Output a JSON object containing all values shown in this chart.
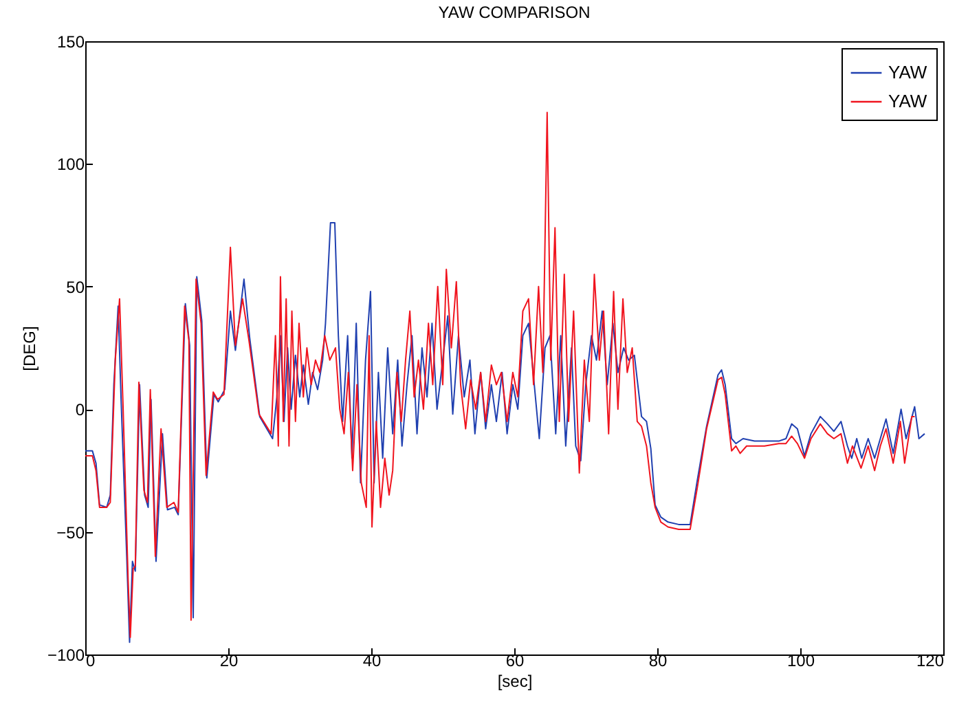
{
  "chart_data": {
    "type": "line",
    "title": "YAW COMPARISON",
    "xlabel": "[sec]",
    "ylabel": "[DEG]",
    "xlim": [
      0,
      120
    ],
    "ylim": [
      -100,
      150
    ],
    "xticks": [
      0,
      20,
      40,
      60,
      80,
      100,
      120
    ],
    "yticks": [
      -100,
      -50,
      0,
      50,
      100,
      150
    ],
    "grid": false,
    "legend": "top right",
    "series": [
      {
        "name": "YAW",
        "color": "#2040b0",
        "x": [
          0,
          1,
          1.5,
          2,
          3,
          3.5,
          4,
          4.6,
          5,
          5.8,
          6.2,
          6.6,
          7,
          7.6,
          8.3,
          8.8,
          9.2,
          9.9,
          10.8,
          11.5,
          12.5,
          13,
          14,
          14.6,
          15.1,
          15.6,
          16.3,
          17,
          18,
          18.6,
          19.5,
          20.3,
          21,
          22.2,
          23,
          24.4,
          26.2,
          26.8,
          27.3,
          27.8,
          28.3,
          28.8,
          29.4,
          30,
          30.5,
          31.2,
          31.8,
          32.5,
          33.2,
          33.6,
          34.3,
          34.9,
          35.4,
          36,
          36.7,
          37.3,
          37.9,
          38.5,
          39.2,
          39.9,
          40.4,
          41,
          41.6,
          42.3,
          43,
          43.7,
          44.3,
          45,
          45.7,
          46.4,
          47.1,
          47.8,
          48.5,
          49.2,
          50,
          50.7,
          51.4,
          52.2,
          53,
          53.8,
          54.5,
          55.3,
          56,
          56.8,
          57.5,
          58.3,
          59,
          59.8,
          60.5,
          61.2,
          62,
          62.8,
          63.5,
          64.3,
          65,
          65.8,
          66.5,
          67.2,
          68,
          68.6,
          69.3,
          70,
          70.8,
          71.5,
          72.3,
          73,
          73.8,
          74.5,
          75.3,
          76,
          76.8,
          77.8,
          78.5,
          79.1,
          79.7,
          80.5,
          81.5,
          83,
          84.6,
          85.6,
          86.9,
          88.5,
          89,
          89.5,
          90.4,
          91,
          92,
          93.6,
          95,
          97,
          98,
          98.8,
          99.6,
          100.6,
          101.5,
          102.8,
          103.8,
          104.7,
          105.7,
          106.6,
          107.2,
          107.9,
          108.6,
          109.5,
          110.4,
          111.2,
          112,
          113,
          114.1,
          114.8,
          116,
          116.6,
          117.4
        ],
        "values": [
          -17,
          -17,
          -22,
          -39,
          -40,
          -35,
          10,
          42,
          5,
          -60,
          -95,
          -62,
          -66,
          10,
          -35,
          -40,
          4,
          -62,
          -10,
          -41,
          -40,
          -43,
          43,
          26,
          -85,
          54,
          36,
          -28,
          6,
          3,
          8,
          40,
          24,
          53,
          29,
          -3,
          -12,
          5,
          30,
          -5,
          25,
          0,
          22,
          5,
          18,
          2,
          15,
          8,
          20,
          35,
          76,
          76,
          30,
          -5,
          30,
          -20,
          35,
          -30,
          20,
          48,
          -30,
          15,
          -20,
          25,
          -10,
          20,
          -15,
          10,
          30,
          -10,
          25,
          5,
          35,
          0,
          20,
          38,
          -2,
          30,
          5,
          20,
          -10,
          15,
          -8,
          10,
          -5,
          15,
          -10,
          10,
          0,
          30,
          35,
          10,
          -12,
          25,
          30,
          -10,
          30,
          -15,
          25,
          -15,
          -21,
          10,
          30,
          20,
          40,
          10,
          35,
          15,
          25,
          20,
          22,
          -3,
          -5,
          -16,
          -39,
          -44,
          -46,
          -47,
          -47,
          -29,
          -7,
          14,
          16,
          10,
          -12,
          -14,
          -12,
          -13,
          -13,
          -13,
          -12,
          -6,
          -8,
          -19,
          -10,
          -3,
          -6,
          -9,
          -5,
          -15,
          -20,
          -12,
          -20,
          -12,
          -20,
          -12,
          -4,
          -18,
          0,
          -12,
          1,
          -12,
          -10
        ]
      },
      {
        "name": "YAW",
        "color": "#f0141e",
        "x": [
          0,
          1,
          1.5,
          2,
          3,
          3.5,
          4.2,
          4.8,
          5.3,
          6,
          6.3,
          6.7,
          7,
          7.5,
          8.2,
          8.7,
          9.1,
          9.8,
          10.6,
          11.4,
          12.4,
          13,
          13.9,
          14.5,
          14.8,
          15.5,
          16.2,
          16.9,
          17.9,
          18.5,
          19.4,
          20.3,
          21,
          22,
          22.9,
          24.3,
          26,
          26.6,
          27,
          27.3,
          27.7,
          28.1,
          28.5,
          28.9,
          29.4,
          29.9,
          30.5,
          31,
          31.6,
          32.2,
          32.8,
          33.5,
          34.2,
          35,
          35.6,
          36.2,
          36.8,
          37.4,
          38,
          38.6,
          39.3,
          39.7,
          40.1,
          40.7,
          41.3,
          41.9,
          42.5,
          43,
          43.6,
          44.2,
          44.8,
          45.4,
          46,
          46.6,
          47.3,
          48,
          48.6,
          49.3,
          50,
          50.5,
          51.2,
          51.9,
          52.5,
          53.2,
          53.9,
          54.6,
          55.3,
          56,
          56.8,
          57.5,
          58.2,
          59,
          59.8,
          60.5,
          61.2,
          62,
          62.7,
          63.4,
          64,
          64.6,
          65.1,
          65.7,
          66.3,
          67,
          67.6,
          68.3,
          69.1,
          69.8,
          70.5,
          71.2,
          71.9,
          72.5,
          73.2,
          73.9,
          74.5,
          75.2,
          75.8,
          76.5,
          77.2,
          77.8,
          78.5,
          79.1,
          79.7,
          80.5,
          81.5,
          83,
          84.6,
          85.6,
          86.9,
          88.5,
          89,
          89.5,
          90.4,
          91,
          91.6,
          92.5,
          93.6,
          95,
          97,
          98,
          98.8,
          99.6,
          100.6,
          101.5,
          102.8,
          103.8,
          104.7,
          105.7,
          106.6,
          107.3,
          108.5,
          109.5,
          110.4,
          111.2,
          112,
          113,
          114,
          114.6,
          115.6,
          116
        ],
        "values": [
          -19,
          -19,
          -25,
          -40,
          -40,
          -38,
          20,
          45,
          0,
          -70,
          -93,
          -65,
          -64,
          11,
          -33,
          -38,
          8,
          -60,
          -8,
          -40,
          -38,
          -42,
          42,
          28,
          -86,
          53,
          35,
          -27,
          7,
          4,
          6,
          66,
          26,
          45,
          28,
          -2,
          -10,
          30,
          -15,
          54,
          -5,
          45,
          -15,
          40,
          -5,
          35,
          5,
          25,
          10,
          20,
          15,
          30,
          20,
          25,
          0,
          -10,
          15,
          -25,
          10,
          -30,
          -40,
          30,
          -48,
          -5,
          -40,
          -20,
          -35,
          -25,
          15,
          -5,
          20,
          40,
          5,
          20,
          0,
          35,
          10,
          50,
          10,
          57,
          25,
          52,
          10,
          -8,
          12,
          0,
          15,
          -5,
          18,
          10,
          15,
          -5,
          15,
          5,
          40,
          45,
          10,
          50,
          15,
          121,
          20,
          74,
          -5,
          55,
          -5,
          40,
          -26,
          20,
          -5,
          55,
          20,
          40,
          -10,
          48,
          0,
          45,
          15,
          25,
          -5,
          -7,
          -15,
          -30,
          -40,
          -46,
          -48,
          -49,
          -49,
          -32,
          -8,
          12,
          13,
          6,
          -17,
          -15,
          -18,
          -15,
          -15,
          -15,
          -14,
          -14,
          -11,
          -14,
          -20,
          -12,
          -6,
          -10,
          -12,
          -10,
          -22,
          -15,
          -24,
          -15,
          -25,
          -15,
          -8,
          -22,
          -5,
          -22,
          -3,
          -3
        ]
      }
    ]
  }
}
